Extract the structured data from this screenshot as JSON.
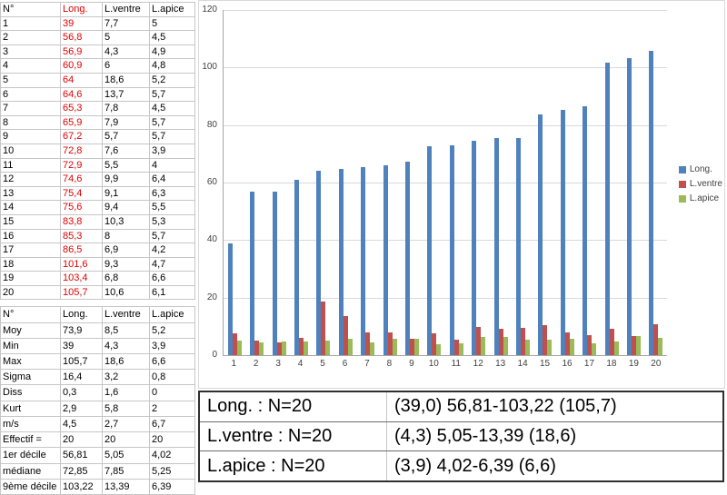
{
  "data_table": {
    "headers": [
      "N°",
      "Long.",
      "L.ventre",
      "L.apice"
    ],
    "rows": [
      [
        "1",
        "39",
        "7,7",
        "5"
      ],
      [
        "2",
        "56,8",
        "5",
        "4,5"
      ],
      [
        "3",
        "56,9",
        "4,3",
        "4,9"
      ],
      [
        "4",
        "60,9",
        "6",
        "4,8"
      ],
      [
        "5",
        "64",
        "18,6",
        "5,2"
      ],
      [
        "6",
        "64,6",
        "13,7",
        "5,7"
      ],
      [
        "7",
        "65,3",
        "7,8",
        "4,5"
      ],
      [
        "8",
        "65,9",
        "7,9",
        "5,7"
      ],
      [
        "9",
        "67,2",
        "5,7",
        "5,7"
      ],
      [
        "10",
        "72,8",
        "7,6",
        "3,9"
      ],
      [
        "11",
        "72,9",
        "5,5",
        "4"
      ],
      [
        "12",
        "74,6",
        "9,9",
        "6,4"
      ],
      [
        "13",
        "75,4",
        "9,1",
        "6,3"
      ],
      [
        "14",
        "75,6",
        "9,4",
        "5,5"
      ],
      [
        "15",
        "83,8",
        "10,3",
        "5,3"
      ],
      [
        "16",
        "85,3",
        "8",
        "5,7"
      ],
      [
        "17",
        "86,5",
        "6,9",
        "4,2"
      ],
      [
        "18",
        "101,6",
        "9,3",
        "4,7"
      ],
      [
        "19",
        "103,4",
        "6,8",
        "6,6"
      ],
      [
        "20",
        "105,7",
        "10,6",
        "6,1"
      ]
    ]
  },
  "stats_table": {
    "headers": [
      "N°",
      "Long.",
      "L.ventre",
      "L.apice"
    ],
    "rows": [
      [
        "Moy",
        "73,9",
        "8,5",
        "5,2"
      ],
      [
        "Min",
        "39",
        "4,3",
        "3,9"
      ],
      [
        "Max",
        "105,7",
        "18,6",
        "6,6"
      ],
      [
        "Sigma",
        "16,4",
        "3,2",
        "0,8"
      ],
      [
        "Diss",
        "0,3",
        "1,6",
        "0"
      ],
      [
        "Kurt",
        "2,9",
        "5,8",
        "2"
      ],
      [
        "m/s",
        "4,5",
        "2,7",
        "6,7"
      ],
      [
        "Effectif =",
        "20",
        "20",
        "20"
      ],
      [
        "1er décile",
        "56,81",
        "5,05",
        "4,02"
      ],
      [
        "médiane",
        "72,85",
        "7,85",
        "5,25"
      ],
      [
        "9ème décile",
        "103,22",
        "13,39",
        "6,39"
      ]
    ]
  },
  "chart_data": {
    "type": "bar",
    "title": "",
    "xlabel": "",
    "ylabel": "",
    "ylim": [
      0,
      120
    ],
    "yticks": [
      120,
      100,
      80,
      60,
      40,
      20,
      0
    ],
    "grid": true,
    "legend_position": "right",
    "categories": [
      "1",
      "2",
      "3",
      "4",
      "5",
      "6",
      "7",
      "8",
      "9",
      "10",
      "11",
      "12",
      "13",
      "14",
      "15",
      "16",
      "17",
      "18",
      "19",
      "20"
    ],
    "series": [
      {
        "name": "Long.",
        "color": "#4F81BD",
        "values": [
          39,
          56.8,
          56.9,
          60.9,
          64,
          64.6,
          65.3,
          65.9,
          67.2,
          72.8,
          72.9,
          74.6,
          75.4,
          75.6,
          83.8,
          85.3,
          86.5,
          101.6,
          103.4,
          105.7
        ]
      },
      {
        "name": "L.ventre",
        "color": "#C0504D",
        "values": [
          7.7,
          5,
          4.3,
          6,
          18.6,
          13.7,
          7.8,
          7.9,
          5.7,
          7.6,
          5.5,
          9.9,
          9.1,
          9.4,
          10.3,
          8,
          6.9,
          9.3,
          6.8,
          10.6
        ]
      },
      {
        "name": "L.apice",
        "color": "#9BBB59",
        "values": [
          5,
          4.5,
          4.9,
          4.8,
          5.2,
          5.7,
          4.5,
          5.7,
          5.7,
          3.9,
          4,
          6.4,
          6.3,
          5.5,
          5.3,
          5.7,
          4.2,
          4.7,
          6.6,
          6.1
        ]
      }
    ]
  },
  "summary": {
    "rows": [
      {
        "label": "Long. : N=20",
        "value": "(39,0) 56,81-103,22 (105,7)"
      },
      {
        "label": "L.ventre : N=20",
        "value": "(4,3) 5,05-13,39 (18,6)"
      },
      {
        "label": "L.apice : N=20",
        "value": "(3,9) 4,02-6,39 (6,6)"
      }
    ]
  },
  "colors": {
    "long_series": "#4F81BD",
    "ventre_series": "#C0504D",
    "apice_series": "#9BBB59",
    "red_text": "#E00000"
  }
}
